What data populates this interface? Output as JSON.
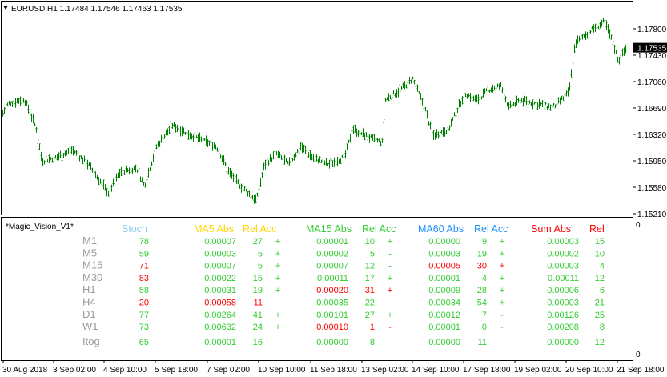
{
  "main_chart": {
    "symbol_info": "EURUSD,H1  1.17484 1.17546 1.17463 1.17535",
    "price_labels": [
      "1.17800",
      "1.17430",
      "1.17060",
      "1.16690",
      "1.16320",
      "1.15950",
      "1.15580",
      "1.15210"
    ],
    "current_price": "1.17535",
    "current_price_color": "#000000",
    "bar_color": "#008000"
  },
  "indicator": {
    "name": "*Magic_Vision_V1*",
    "scale_top": "0",
    "scale_bottom": "0",
    "headers": {
      "stoch": "Stoch",
      "ma5_abs": "MA5 Abs",
      "ma5_rel": "Rel Acc",
      "ma15_abs": "MA15 Abs",
      "ma15_rel": "Rel Acc",
      "ma60_abs": "MA60 Abs",
      "ma60_rel": "Rel Acc",
      "sum_abs": "Sum  Abs",
      "sum_rel": "Rel"
    },
    "header_colors": {
      "stoch": "#87ceeb",
      "ma5": "#ffd700",
      "ma15": "#32cd32",
      "ma60": "#1e90ff",
      "sum": "#ff0000"
    },
    "rows": [
      {
        "tf": "M1",
        "stoch": "78",
        "stoch_c": "g",
        "ma5": "0.00007",
        "ma5_c": "g",
        "ma5r": "27",
        "ma5s": "+",
        "ma15": "0.00001",
        "ma15_c": "g",
        "ma15r": "10",
        "ma15s": "+",
        "ma60": "0.00000",
        "ma60_c": "g",
        "ma60r": "9",
        "ma60s": "+",
        "sum": "0.00003",
        "sum_c": "g",
        "sumr": "15"
      },
      {
        "tf": "M5",
        "stoch": "59",
        "stoch_c": "g",
        "ma5": "0.00003",
        "ma5_c": "g",
        "ma5r": "5",
        "ma5s": "+",
        "ma15": "0.00002",
        "ma15_c": "g",
        "ma15r": "5",
        "ma15s": "-",
        "ma60": "0.00003",
        "ma60_c": "g",
        "ma60r": "19",
        "ma60s": "+",
        "sum": "0.00002",
        "sum_c": "g",
        "sumr": "10"
      },
      {
        "tf": "M15",
        "stoch": "71",
        "stoch_c": "r",
        "ma5": "0.00007",
        "ma5_c": "g",
        "ma5r": "5",
        "ma5s": "+",
        "ma15": "0.00007",
        "ma15_c": "g",
        "ma15r": "12",
        "ma15s": "-",
        "ma60": "0.00005",
        "ma60_c": "r",
        "ma60r": "30",
        "ma60s": "+",
        "sum": "0.00003",
        "sum_c": "g",
        "sumr": "4"
      },
      {
        "tf": "M30",
        "stoch": "83",
        "stoch_c": "r",
        "ma5": "0.00022",
        "ma5_c": "g",
        "ma5r": "15",
        "ma5s": "+",
        "ma15": "0.00011",
        "ma15_c": "g",
        "ma15r": "17",
        "ma15s": "+",
        "ma60": "0.00001",
        "ma60_c": "g",
        "ma60r": "4",
        "ma60s": "+",
        "sum": "0.00011",
        "sum_c": "g",
        "sumr": "12"
      },
      {
        "tf": "H1",
        "stoch": "58",
        "stoch_c": "g",
        "ma5": "0.00031",
        "ma5_c": "g",
        "ma5r": "19",
        "ma5s": "+",
        "ma15": "0.00020",
        "ma15_c": "r",
        "ma15r": "31",
        "ma15s": "+",
        "ma60": "0.00009",
        "ma60_c": "g",
        "ma60r": "28",
        "ma60s": "+",
        "sum": "0.00006",
        "sum_c": "g",
        "sumr": "6"
      },
      {
        "tf": "H4",
        "stoch": "20",
        "stoch_c": "r",
        "ma5": "0.00058",
        "ma5_c": "r",
        "ma5r": "11",
        "ma5s": "-",
        "ma15": "0.00035",
        "ma15_c": "g",
        "ma15r": "22",
        "ma15s": "-",
        "ma60": "0.00034",
        "ma60_c": "g",
        "ma60r": "54",
        "ma60s": "+",
        "sum": "0.00003",
        "sum_c": "g",
        "sumr": "21"
      },
      {
        "tf": "D1",
        "stoch": "77",
        "stoch_c": "g",
        "ma5": "0.00264",
        "ma5_c": "g",
        "ma5r": "41",
        "ma5s": "+",
        "ma15": "0.00101",
        "ma15_c": "g",
        "ma15r": "27",
        "ma15s": "+",
        "ma60": "0.00012",
        "ma60_c": "g",
        "ma60r": "7",
        "ma60s": "-",
        "sum": "0.00126",
        "sum_c": "g",
        "sumr": "25"
      },
      {
        "tf": "W1",
        "stoch": "73",
        "stoch_c": "g",
        "ma5": "0.00632",
        "ma5_c": "g",
        "ma5r": "24",
        "ma5s": "+",
        "ma15": "0.00010",
        "ma15_c": "r",
        "ma15r": "1",
        "ma15s": "-",
        "ma60": "0.00001",
        "ma60_c": "g",
        "ma60r": "0",
        "ma60s": "-",
        "sum": "0.00208",
        "sum_c": "g",
        "sumr": "8"
      }
    ],
    "total_row": {
      "tf": "Itog",
      "stoch": "65",
      "ma5": "0.00001",
      "ma5r": "16",
      "ma15": "0.00000",
      "ma15r": "8",
      "ma60": "0.00000",
      "ma60r": "11",
      "sum": "0.00000",
      "sumr": "12"
    },
    "value_colors": {
      "g": "#32cd32",
      "r": "#ff0000",
      "label": "#9a9a9a"
    }
  },
  "time_axis": {
    "labels": [
      "30 Aug 2018",
      "3 Sep 02:00",
      "4 Sep 10:00",
      "5 Sep 18:00",
      "7 Sep 02:00",
      "10 Sep 10:00",
      "11 Sep 18:00",
      "13 Sep 02:00",
      "14 Sep 10:00",
      "17 Sep 18:00",
      "19 Sep 02:00",
      "20 Sep 10:00",
      "21 Sep 18:00"
    ]
  }
}
